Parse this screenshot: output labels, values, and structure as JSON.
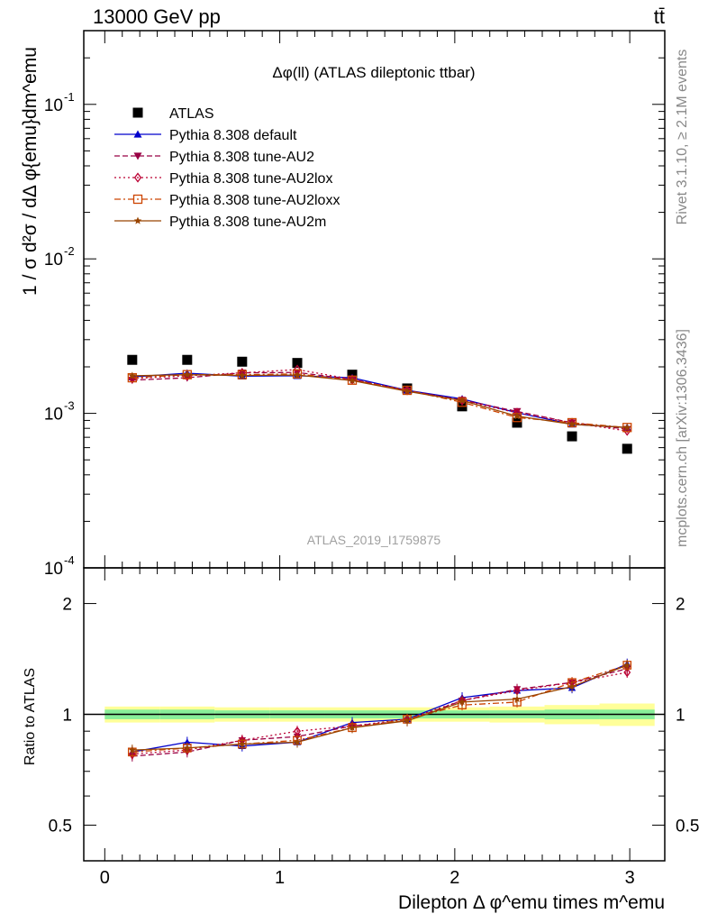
{
  "header": {
    "left": "13000 GeV pp",
    "right": "tt̄"
  },
  "side_labels": {
    "upper": "Rivet 3.1.10, ≥ 2.1M events",
    "lower": "mcplots.cern.ch [arXiv:1306.3436]"
  },
  "watermark": "ATLAS_2019_I1759875",
  "chart_data": [
    {
      "type": "scatter",
      "panel": "main",
      "title": "Δφ(ll) (ATLAS dileptonic ttbar)",
      "ylabel": "1 / σ  d²σ / dΔ φ{emu}dm^emu",
      "xlabel": "Dilepton Δ φ^emu times m^emu",
      "yscale": "log",
      "xlim": [
        -0.12,
        3.2
      ],
      "ylim": [
        0.0001,
        0.3
      ],
      "y_tick_labels": [
        "10^-4",
        "10^-3",
        "10^-2",
        "10^-1"
      ],
      "legend_position": "top-left",
      "x": [
        0.157,
        0.471,
        0.785,
        1.1,
        1.414,
        1.728,
        2.042,
        2.356,
        2.67,
        2.985
      ],
      "series": [
        {
          "name": "ATLAS",
          "color": "#000000",
          "marker": "square",
          "line": "none",
          "values": [
            0.00222,
            0.00222,
            0.00216,
            0.00212,
            0.00178,
            0.00145,
            0.00111,
            0.00087,
            0.00071,
            0.00059
          ]
        },
        {
          "name": "Pythia 8.308 default",
          "color": "#0000cc",
          "marker": "triangle-up",
          "line": "solid",
          "values": [
            0.00172,
            0.00182,
            0.00174,
            0.00175,
            0.0017,
            0.00141,
            0.00124,
            0.00101,
            0.00085,
            0.00081
          ]
        },
        {
          "name": "Pythia 8.308 tune-AU2",
          "color": "#990044",
          "marker": "triangle-down",
          "line": "dashed",
          "values": [
            0.00164,
            0.0017,
            0.00183,
            0.00184,
            0.00166,
            0.0014,
            0.00122,
            0.00103,
            0.00087,
            0.00079
          ]
        },
        {
          "name": "Pythia 8.308 tune-AU2lox",
          "color": "#bb0033",
          "marker": "diamond-open",
          "line": "dotted",
          "values": [
            0.00168,
            0.00175,
            0.00183,
            0.00192,
            0.00166,
            0.00141,
            0.00121,
            0.00101,
            0.00087,
            0.00077
          ]
        },
        {
          "name": "Pythia 8.308 tune-AU2loxx",
          "color": "#cc4400",
          "marker": "square-open",
          "line": "dashdot",
          "values": [
            0.0017,
            0.00178,
            0.00178,
            0.0018,
            0.00164,
            0.00141,
            0.00118,
            0.00094,
            0.00087,
            0.00081
          ]
        },
        {
          "name": "Pythia 8.308 tune-AU2m",
          "color": "#994400",
          "marker": "star",
          "line": "solid",
          "values": [
            0.00175,
            0.00178,
            0.00176,
            0.00177,
            0.00163,
            0.00139,
            0.00121,
            0.00096,
            0.00085,
            0.00081
          ]
        }
      ]
    },
    {
      "type": "line",
      "panel": "ratio",
      "ylabel": "Ratio to ATLAS",
      "yscale": "log",
      "ylim": [
        0.4,
        2.5
      ],
      "y_tick_labels": [
        "0.5",
        "1",
        "2"
      ],
      "x_tick_labels": [
        "0",
        "1",
        "2",
        "3"
      ],
      "band_edges": [
        0.0,
        0.314,
        0.628,
        0.942,
        1.257,
        1.571,
        1.885,
        2.199,
        2.513,
        2.827,
        3.142
      ],
      "band_inner": [
        0.03,
        0.03,
        0.025,
        0.025,
        0.025,
        0.025,
        0.025,
        0.025,
        0.03,
        0.03
      ],
      "band_outer": [
        0.05,
        0.05,
        0.045,
        0.045,
        0.045,
        0.045,
        0.045,
        0.05,
        0.06,
        0.07
      ],
      "band_colors": {
        "outer": "#ffff99",
        "inner": "#88ee99"
      },
      "x": [
        0.157,
        0.471,
        0.785,
        1.1,
        1.414,
        1.728,
        2.042,
        2.356,
        2.67,
        2.985
      ],
      "series": [
        {
          "name": "Pythia 8.308 default",
          "color": "#0000cc",
          "values": [
            0.79,
            0.84,
            0.82,
            0.84,
            0.95,
            0.97,
            1.11,
            1.16,
            1.18,
            1.37
          ]
        },
        {
          "name": "Pythia 8.308 tune-AU2",
          "color": "#990044",
          "values": [
            0.77,
            0.79,
            0.85,
            0.87,
            0.93,
            0.96,
            1.09,
            1.17,
            1.22,
            1.33
          ]
        },
        {
          "name": "Pythia 8.308 tune-AU2lox",
          "color": "#bb0033",
          "values": [
            0.78,
            0.8,
            0.85,
            0.9,
            0.93,
            0.97,
            1.09,
            1.16,
            1.22,
            1.3
          ]
        },
        {
          "name": "Pythia 8.308 tune-AU2loxx",
          "color": "#cc4400",
          "values": [
            0.79,
            0.81,
            0.83,
            0.85,
            0.92,
            0.97,
            1.06,
            1.08,
            1.22,
            1.36
          ]
        },
        {
          "name": "Pythia 8.308 tune-AU2m",
          "color": "#994400",
          "values": [
            0.8,
            0.81,
            0.83,
            0.84,
            0.92,
            0.96,
            1.08,
            1.1,
            1.19,
            1.36
          ]
        }
      ]
    }
  ]
}
